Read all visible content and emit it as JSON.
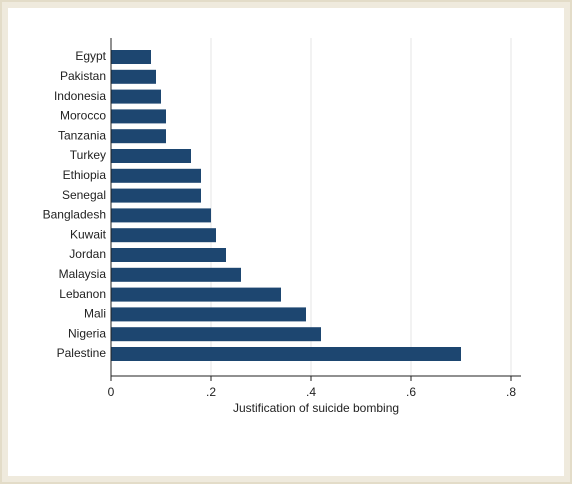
{
  "chart_data": {
    "type": "barh",
    "xlabel": "Justification of suicide bombing",
    "categories": [
      "Egypt",
      "Pakistan",
      "Indonesia",
      "Morocco",
      "Tanzania",
      "Turkey",
      "Ethiopia",
      "Senegal",
      "Bangladesh",
      "Kuwait",
      "Jordan",
      "Malaysia",
      "Lebanon",
      "Mali",
      "Nigeria",
      "Palestine"
    ],
    "values": [
      0.08,
      0.09,
      0.1,
      0.11,
      0.11,
      0.16,
      0.18,
      0.18,
      0.2,
      0.21,
      0.23,
      0.26,
      0.34,
      0.39,
      0.42,
      0.7
    ],
    "color": "#1d4670",
    "xlim": [
      0,
      0.82
    ],
    "xticks": [
      0,
      {
        "value": 0.2,
        "label": ".2"
      },
      {
        "value": 0.4,
        "label": ".4"
      },
      {
        "value": 0.6,
        "label": ".6"
      },
      {
        "value": 0.8,
        "label": ".8"
      }
    ],
    "grid": true
  }
}
